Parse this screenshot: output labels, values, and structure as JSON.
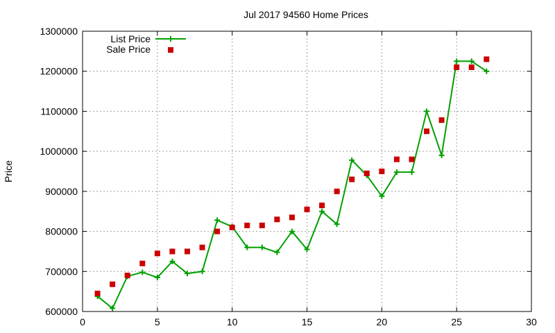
{
  "chart_data": {
    "type": "line",
    "title": "Jul 2017 94560 Home Prices",
    "xlabel": "",
    "ylabel": "Price",
    "xlim": [
      0,
      30
    ],
    "ylim": [
      600000,
      1300000
    ],
    "xticks": [
      0,
      5,
      10,
      15,
      20,
      25,
      30
    ],
    "yticks": [
      600000,
      700000,
      800000,
      900000,
      1000000,
      1100000,
      1200000,
      1300000
    ],
    "grid": true,
    "legend_position": "top-left",
    "series": [
      {
        "name": "List Price",
        "style": "line-plus",
        "color": "#00a000",
        "x": [
          1,
          2,
          3,
          4,
          5,
          6,
          7,
          8,
          9,
          10,
          11,
          12,
          13,
          14,
          15,
          16,
          17,
          18,
          19,
          20,
          21,
          22,
          23,
          24,
          25,
          26,
          27
        ],
        "values": [
          638000,
          608000,
          688000,
          698000,
          685000,
          725000,
          695000,
          700000,
          828000,
          812000,
          760000,
          760000,
          748000,
          800000,
          755000,
          850000,
          818000,
          978000,
          940000,
          888000,
          948000,
          948000,
          1100000,
          990000,
          1225000,
          1225000,
          1200000
        ]
      },
      {
        "name": "Sale Price",
        "style": "square",
        "color": "#cc0000",
        "x": [
          1,
          2,
          3,
          4,
          5,
          6,
          7,
          8,
          9,
          10,
          11,
          12,
          13,
          14,
          15,
          16,
          17,
          18,
          19,
          20,
          21,
          22,
          23,
          24,
          25,
          26,
          27
        ],
        "values": [
          645000,
          668000,
          690000,
          720000,
          745000,
          750000,
          750000,
          760000,
          800000,
          810000,
          815000,
          815000,
          830000,
          835000,
          855000,
          865000,
          900000,
          930000,
          945000,
          950000,
          980000,
          980000,
          1050000,
          1078000,
          1210000,
          1210000,
          1230000
        ]
      }
    ]
  }
}
